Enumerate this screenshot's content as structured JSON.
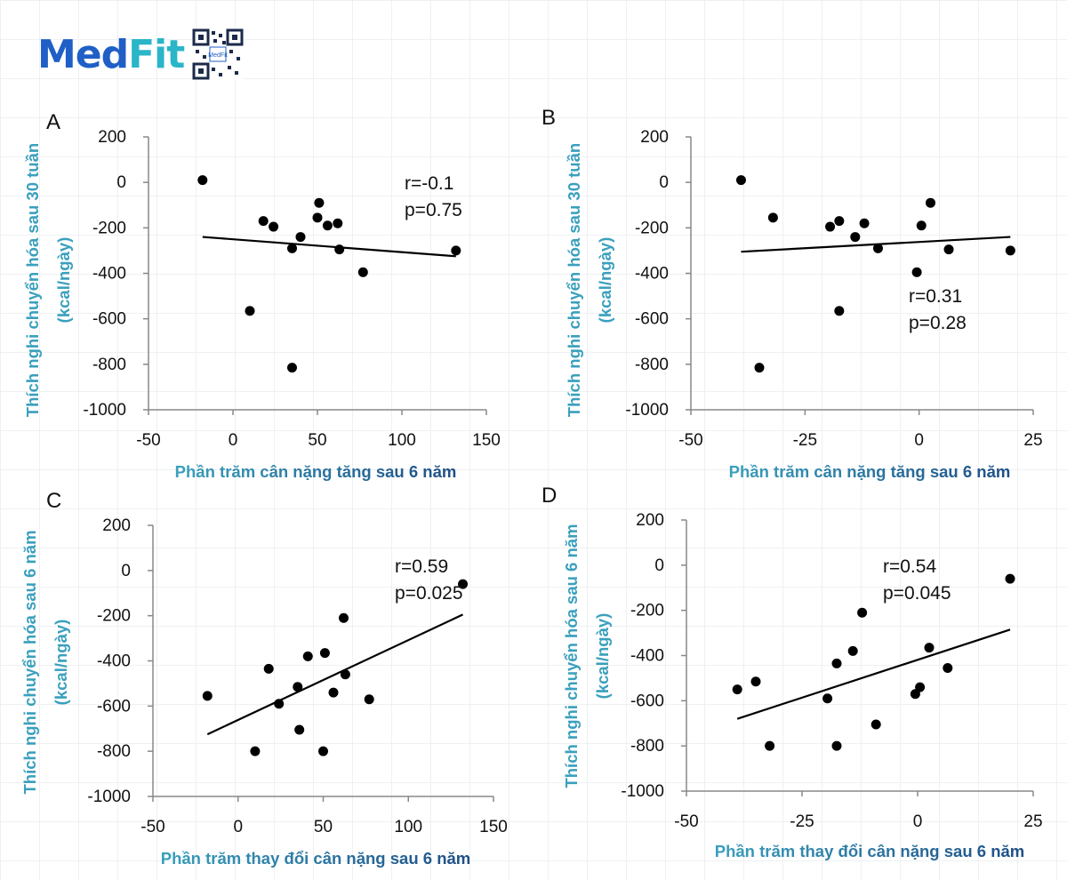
{
  "logo": {
    "brand_main": "Med",
    "brand_accent": "Fit",
    "qr_caption": "MedFit"
  },
  "colors": {
    "axis_title_start": "#3aa0bd",
    "axis_title_end": "#1f4e86",
    "marker": "#000000",
    "axis": "#888888",
    "brand_blue": "#1f5fc6",
    "brand_teal": "#2ab5c8"
  },
  "chart_data": [
    {
      "panel": "A",
      "type": "scatter",
      "xlabel": "Phần trăm cân nặng tăng sau 6 năm",
      "ylabel_lines": [
        "Thích nghi chuyển hóa sau 30 tuần",
        "(kcal/ngày)"
      ],
      "xlim": [
        -50,
        150
      ],
      "ylim": [
        -1000,
        200
      ],
      "xticks": [
        -50,
        0,
        50,
        100,
        150
      ],
      "yticks": [
        200,
        0,
        -200,
        -400,
        -600,
        -800,
        -1000
      ],
      "points": [
        [
          -18,
          10
        ],
        [
          10,
          -565
        ],
        [
          18,
          -170
        ],
        [
          24,
          -195
        ],
        [
          35,
          -290
        ],
        [
          35,
          -815
        ],
        [
          40,
          -240
        ],
        [
          50,
          -155
        ],
        [
          51,
          -90
        ],
        [
          56,
          -190
        ],
        [
          62,
          -180
        ],
        [
          63,
          -295
        ],
        [
          77,
          -395
        ],
        [
          132,
          -300
        ]
      ],
      "trendline": [
        [
          -18,
          -240
        ],
        [
          132,
          -325
        ]
      ],
      "annotation": [
        "r=-0.1",
        "p=0.75"
      ]
    },
    {
      "panel": "B",
      "type": "scatter",
      "xlabel": "Phần trăm cân nặng tăng sau 6 năm",
      "ylabel_lines": [
        "Thích nghi chuyển hóa sau 30 tuần",
        "(kcal/ngày)"
      ],
      "xlim": [
        -50,
        25
      ],
      "ylim": [
        -1000,
        200
      ],
      "xticks": [
        -50,
        -25,
        0,
        25
      ],
      "yticks": [
        200,
        0,
        -200,
        -400,
        -600,
        -800,
        -1000
      ],
      "points": [
        [
          -39,
          10
        ],
        [
          -35,
          -815
        ],
        [
          -32,
          -155
        ],
        [
          -19.5,
          -195
        ],
        [
          -17.5,
          -170
        ],
        [
          -17.5,
          -565
        ],
        [
          -14,
          -240
        ],
        [
          -12,
          -180
        ],
        [
          -9,
          -290
        ],
        [
          -0.5,
          -395
        ],
        [
          0.5,
          -190
        ],
        [
          2.5,
          -90
        ],
        [
          6.5,
          -295
        ],
        [
          20,
          -300
        ]
      ],
      "trendline": [
        [
          -39,
          -305
        ],
        [
          20,
          -240
        ]
      ],
      "annotation": [
        "r=0.31",
        "p=0.28"
      ]
    },
    {
      "panel": "C",
      "type": "scatter",
      "xlabel": "Phần trăm thay đổi cân nặng sau 6 năm",
      "ylabel_lines": [
        "Thích nghi chuyển hóa sau 6 năm",
        "(kcal/ngày)"
      ],
      "xlim": [
        -50,
        150
      ],
      "ylim": [
        -1000,
        200
      ],
      "xticks": [
        -50,
        0,
        50,
        100,
        150
      ],
      "yticks": [
        200,
        0,
        -200,
        -400,
        -600,
        -800,
        -1000
      ],
      "points": [
        [
          -18,
          -555
        ],
        [
          10,
          -800
        ],
        [
          18,
          -435
        ],
        [
          24,
          -590
        ],
        [
          35,
          -515
        ],
        [
          36,
          -705
        ],
        [
          41,
          -380
        ],
        [
          50,
          -800
        ],
        [
          51,
          -365
        ],
        [
          56,
          -540
        ],
        [
          62,
          -210
        ],
        [
          63,
          -460
        ],
        [
          77,
          -570
        ],
        [
          132,
          -60
        ]
      ],
      "trendline": [
        [
          -18,
          -725
        ],
        [
          132,
          -195
        ]
      ],
      "annotation": [
        "r=0.59",
        "p=0.025"
      ]
    },
    {
      "panel": "D",
      "type": "scatter",
      "xlabel": "Phần trăm thay đổi cân nặng sau 6 năm",
      "ylabel_lines": [
        "Thích nghi chuyển hóa sau 6 năm",
        "(kcal/ngày)"
      ],
      "xlim": [
        -50,
        25
      ],
      "ylim": [
        -1000,
        200
      ],
      "xticks": [
        -50,
        -25,
        0,
        25
      ],
      "yticks": [
        200,
        0,
        -200,
        -400,
        -600,
        -800,
        -1000
      ],
      "points": [
        [
          -39,
          -550
        ],
        [
          -35,
          -515
        ],
        [
          -32,
          -800
        ],
        [
          -19.5,
          -590
        ],
        [
          -17.5,
          -435
        ],
        [
          -17.5,
          -800
        ],
        [
          -14,
          -380
        ],
        [
          -12,
          -210
        ],
        [
          -9,
          -705
        ],
        [
          -0.5,
          -570
        ],
        [
          0.5,
          -540
        ],
        [
          2.5,
          -365
        ],
        [
          6.5,
          -455
        ],
        [
          20,
          -60
        ]
      ],
      "trendline": [
        [
          -39,
          -680
        ],
        [
          20,
          -285
        ]
      ],
      "annotation": [
        "r=0.54",
        "p=0.045"
      ]
    }
  ]
}
